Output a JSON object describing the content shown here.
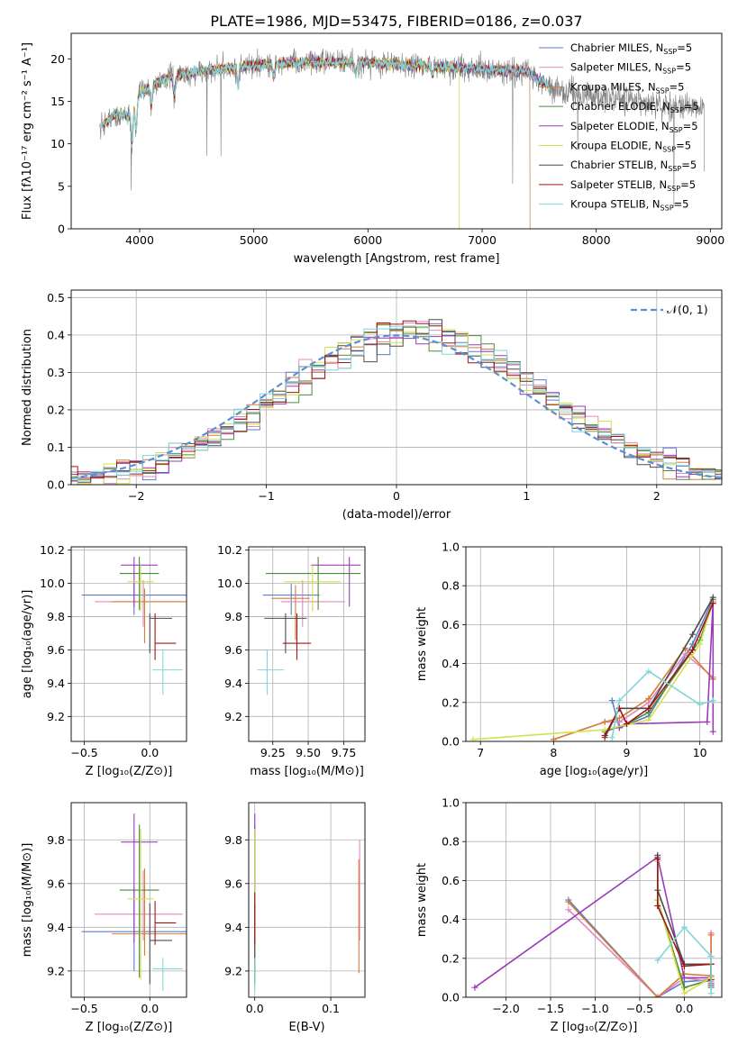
{
  "figure": {
    "title": "PLATE=1986, MJD=53475, FIBERID=0186, z=0.037",
    "colors": [
      "#5b7ec6",
      "#e08ac0",
      "#d67d3a",
      "#4f8a3a",
      "#9b3bb8",
      "#d2e24a",
      "#4d4d4d",
      "#a01616",
      "#7fd6da"
    ]
  },
  "chart_data": [
    {
      "id": "spectrum",
      "type": "line",
      "xlabel": "wavelength [Angstrom, rest frame]",
      "ylabel": "Flux [fλ10⁻¹⁷ erg cm⁻² s⁻¹ A⁻¹]",
      "xlim": [
        3400,
        9100
      ],
      "ylim": [
        0,
        23
      ],
      "xticks": [
        4000,
        5000,
        6000,
        7000,
        8000,
        9000
      ],
      "yticks": [
        0,
        5,
        10,
        15,
        20
      ],
      "grid": false,
      "legend": "top-right",
      "continuum": {
        "x": [
          3650,
          3800,
          3900,
          4000,
          4200,
          4500,
          5000,
          5500,
          6000,
          6500,
          7000,
          7400,
          7600,
          7800,
          8000,
          8300,
          8600,
          8900
        ],
        "y": [
          12.0,
          13.5,
          13.2,
          16.0,
          17.5,
          18.5,
          19.2,
          19.6,
          19.6,
          19.2,
          18.8,
          18.5,
          16.5,
          16.0,
          15.6,
          15.0,
          14.6,
          14.1
        ]
      },
      "series": [
        {
          "name": "Chabrier MILES, N",
          "sub": "SSP",
          "suffix": "=5"
        },
        {
          "name": "Salpeter MILES, N",
          "sub": "SSP",
          "suffix": "=5"
        },
        {
          "name": "Kroupa MILES, N",
          "sub": "SSP",
          "suffix": "=5"
        },
        {
          "name": "Chabrier ELODIE, N",
          "sub": "SSP",
          "suffix": "=5"
        },
        {
          "name": "Salpeter ELODIE, N",
          "sub": "SSP",
          "suffix": "=5"
        },
        {
          "name": "Kroupa ELODIE, N",
          "sub": "SSP",
          "suffix": "=5"
        },
        {
          "name": "Chabrier STELIB, N",
          "sub": "SSP",
          "suffix": "=5"
        },
        {
          "name": "Salpeter STELIB, N",
          "sub": "SSP",
          "suffix": "=5"
        },
        {
          "name": "Kroupa STELIB, N",
          "sub": "SSP",
          "suffix": "=5"
        }
      ]
    },
    {
      "id": "residuals",
      "type": "line",
      "xlabel": "(data-model)/error",
      "ylabel": "Normed distribution",
      "xlim": [
        -2.5,
        2.5
      ],
      "ylim": [
        0,
        0.52
      ],
      "xticks": [
        -2,
        -1,
        0,
        1,
        2
      ],
      "xtick_labels": [
        "−2",
        "−1",
        "0",
        "1",
        "2"
      ],
      "yticks": [
        0.0,
        0.1,
        0.2,
        0.3,
        0.4,
        0.5
      ],
      "ytick_labels": [
        "0.0",
        "0.1",
        "0.2",
        "0.3",
        "0.4",
        "0.5"
      ],
      "grid": true,
      "legend": "top-right",
      "gaussian_label": "𝒩(0, 1)",
      "bin_width": 0.1
    },
    {
      "id": "age-vs-Z",
      "type": "scatter",
      "xlabel": "Z [log₁₀(Z/Z⊙)]",
      "ylabel": "age  [log₁₀(age/yr)]",
      "xlim": [
        -0.6,
        0.28
      ],
      "ylim": [
        9.05,
        10.22
      ],
      "xticks": [
        -0.5,
        0.0
      ],
      "xtick_labels": [
        "−0.5",
        "0.0"
      ],
      "yticks": [
        9.2,
        9.4,
        9.6,
        9.8,
        10.0,
        10.2
      ],
      "ytick_labels": [
        "9.2",
        "9.4",
        "9.6",
        "9.8",
        "10.0",
        "10.2"
      ],
      "grid": true,
      "points": [
        {
          "x": -0.12,
          "y": 9.93,
          "xerr": [
            0.4,
            0.4
          ],
          "yerr": [
            0.12,
            0.07
          ]
        },
        {
          "x": -0.05,
          "y": 9.89,
          "xerr": [
            0.37,
            0.3
          ],
          "yerr": [
            0.15,
            0.13
          ]
        },
        {
          "x": -0.04,
          "y": 9.89,
          "xerr": [
            0.25,
            0.35
          ],
          "yerr": [
            0.25,
            0.08
          ]
        },
        {
          "x": -0.08,
          "y": 10.06,
          "xerr": [
            0.15,
            0.15
          ],
          "yerr": [
            0.22,
            0.1
          ]
        },
        {
          "x": -0.12,
          "y": 10.11,
          "xerr": [
            0.1,
            0.18
          ],
          "yerr": [
            0.25,
            0.05
          ]
        },
        {
          "x": -0.07,
          "y": 10.01,
          "xerr": [
            0.1,
            0.1
          ],
          "yerr": [
            0.18,
            0.1
          ]
        },
        {
          "x": 0.0,
          "y": 9.79,
          "xerr": [
            0.0,
            0.17
          ],
          "yerr": [
            0.21,
            0.03
          ]
        },
        {
          "x": 0.04,
          "y": 9.64,
          "xerr": [
            0.0,
            0.16
          ],
          "yerr": [
            0.1,
            0.18
          ]
        },
        {
          "x": 0.1,
          "y": 9.48,
          "xerr": [
            0.08,
            0.15
          ],
          "yerr": [
            0.15,
            0.12
          ]
        }
      ]
    },
    {
      "id": "age-vs-mass",
      "type": "scatter",
      "xlabel": "mass [log₁₀(M/M⊙)]",
      "ylabel": "",
      "xlim": [
        9.08,
        9.9
      ],
      "ylim": [
        9.05,
        10.22
      ],
      "xticks": [
        9.25,
        9.5,
        9.75
      ],
      "xtick_labels": [
        "9.25",
        "9.50",
        "9.75"
      ],
      "yticks": [
        9.2,
        9.4,
        9.6,
        9.8,
        10.0,
        10.2
      ],
      "ytick_labels": [
        "9.2",
        "9.4",
        "9.6",
        "9.8",
        "10.0",
        "10.2"
      ],
      "grid": true,
      "points": [
        {
          "x": 9.38,
          "y": 9.93,
          "xerr": [
            0.2,
            0.2
          ],
          "yerr": [
            0.12,
            0.07
          ]
        },
        {
          "x": 9.46,
          "y": 9.89,
          "xerr": [
            0.15,
            0.3
          ],
          "yerr": [
            0.15,
            0.13
          ]
        },
        {
          "x": 9.41,
          "y": 9.91,
          "xerr": [
            0.17,
            0.1
          ],
          "yerr": [
            0.25,
            0.08
          ]
        },
        {
          "x": 9.57,
          "y": 10.06,
          "xerr": [
            0.37,
            0.3
          ],
          "yerr": [
            0.22,
            0.1
          ]
        },
        {
          "x": 9.79,
          "y": 10.11,
          "xerr": [
            0.27,
            0.08
          ],
          "yerr": [
            0.25,
            0.05
          ]
        },
        {
          "x": 9.53,
          "y": 10.01,
          "xerr": [
            0.2,
            0.2
          ],
          "yerr": [
            0.18,
            0.1
          ]
        },
        {
          "x": 9.34,
          "y": 9.79,
          "xerr": [
            0.15,
            0.15
          ],
          "yerr": [
            0.21,
            0.03
          ]
        },
        {
          "x": 9.42,
          "y": 9.64,
          "xerr": [
            0.1,
            0.1
          ],
          "yerr": [
            0.1,
            0.18
          ]
        },
        {
          "x": 9.21,
          "y": 9.48,
          "xerr": [
            0.07,
            0.12
          ],
          "yerr": [
            0.15,
            0.12
          ]
        }
      ]
    },
    {
      "id": "weight-vs-age",
      "type": "line",
      "xlabel": "age  [log₁₀(age/yr)]",
      "ylabel": "mass weight",
      "xlim": [
        6.8,
        10.3
      ],
      "ylim": [
        0,
        1.0
      ],
      "xticks": [
        7,
        8,
        9,
        10
      ],
      "xtick_labels": [
        "7",
        "8",
        "9",
        "10"
      ],
      "yticks": [
        0,
        0.2,
        0.4,
        0.6,
        0.8,
        1.0
      ],
      "ytick_labels": [
        "0.0",
        "0.2",
        "0.4",
        "0.6",
        "0.8",
        "1.0"
      ],
      "grid": true,
      "lines": [
        {
          "x": [
            8.8,
            8.9,
            9.3,
            9.9,
            10.18
          ],
          "y": [
            0.21,
            0.07,
            0.13,
            0.5,
            0.73
          ]
        },
        {
          "x": [
            8.0,
            8.7,
            8.9,
            9.3,
            9.8,
            10.18
          ],
          "y": [
            0.01,
            0.1,
            0.1,
            0.2,
            0.45,
            0.33
          ]
        },
        {
          "x": [
            8.0,
            8.7,
            8.9,
            9.3,
            9.8,
            10.18
          ],
          "y": [
            0.01,
            0.1,
            0.12,
            0.22,
            0.48,
            0.32
          ]
        },
        {
          "x": [
            8.7,
            9.0,
            9.3,
            10.0,
            10.18
          ],
          "y": [
            0.05,
            0.09,
            0.15,
            0.52,
            0.72
          ]
        },
        {
          "x": [
            8.9,
            9.0,
            10.1,
            10.18,
            10.18
          ],
          "y": [
            0.07,
            0.09,
            0.1,
            0.72,
            0.05
          ]
        },
        {
          "x": [
            6.9,
            8.7,
            9.3,
            10.0,
            10.18
          ],
          "y": [
            0.01,
            0.06,
            0.11,
            0.5,
            0.72
          ]
        },
        {
          "x": [
            8.7,
            8.9,
            9.3,
            9.9,
            10.18
          ],
          "y": [
            0.02,
            0.17,
            0.17,
            0.55,
            0.74
          ]
        },
        {
          "x": [
            8.7,
            8.9,
            9.0,
            9.3,
            9.9,
            10.18
          ],
          "y": [
            0.03,
            0.17,
            0.09,
            0.17,
            0.47,
            0.71
          ]
        },
        {
          "x": [
            8.8,
            8.9,
            9.3,
            10.0,
            10.18
          ],
          "y": [
            0.02,
            0.21,
            0.36,
            0.19,
            0.21
          ]
        }
      ]
    },
    {
      "id": "mass-vs-Z",
      "type": "scatter",
      "xlabel": "Z [log₁₀(Z/Z⊙)]",
      "ylabel": "mass [log₁₀(M/M⊙)]",
      "xlim": [
        -0.6,
        0.28
      ],
      "ylim": [
        9.08,
        9.97
      ],
      "xticks": [
        -0.5,
        0.0
      ],
      "xtick_labels": [
        "−0.5",
        "0.0"
      ],
      "yticks": [
        9.2,
        9.4,
        9.6,
        9.8
      ],
      "ytick_labels": [
        "9.2",
        "9.4",
        "9.6",
        "9.8"
      ],
      "grid": true,
      "points": [
        {
          "x": -0.12,
          "y": 9.38,
          "xerr": [
            0.4,
            0.4
          ],
          "yerr": [
            0.18,
            0.2
          ]
        },
        {
          "x": -0.05,
          "y": 9.46,
          "xerr": [
            0.37,
            0.3
          ],
          "yerr": [
            0.12,
            0.2
          ]
        },
        {
          "x": -0.04,
          "y": 9.37,
          "xerr": [
            0.25,
            0.35
          ],
          "yerr": [
            0.1,
            0.3
          ]
        },
        {
          "x": -0.08,
          "y": 9.57,
          "xerr": [
            0.15,
            0.15
          ],
          "yerr": [
            0.4,
            0.3
          ]
        },
        {
          "x": -0.12,
          "y": 9.79,
          "xerr": [
            0.1,
            0.18
          ],
          "yerr": [
            0.46,
            0.13
          ]
        },
        {
          "x": -0.07,
          "y": 9.53,
          "xerr": [
            0.1,
            0.1
          ],
          "yerr": [
            0.37,
            0.32
          ]
        },
        {
          "x": 0.0,
          "y": 9.34,
          "xerr": [
            0.0,
            0.17
          ],
          "yerr": [
            0.2,
            0.17
          ]
        },
        {
          "x": 0.04,
          "y": 9.42,
          "xerr": [
            0.0,
            0.16
          ],
          "yerr": [
            0.1,
            0.1
          ]
        },
        {
          "x": 0.1,
          "y": 9.21,
          "xerr": [
            0.08,
            0.15
          ],
          "yerr": [
            0.1,
            0.05
          ]
        }
      ]
    },
    {
      "id": "mass-vs-ebv",
      "type": "scatter",
      "xlabel": "E(B-V)",
      "ylabel": "",
      "xlim": [
        -0.008,
        0.145
      ],
      "ylim": [
        9.08,
        9.97
      ],
      "xticks": [
        0.0,
        0.1
      ],
      "xtick_labels": [
        "0.0",
        "0.1"
      ],
      "yticks": [
        9.2,
        9.4,
        9.6,
        9.8
      ],
      "ytick_labels": [
        "9.2",
        "9.4",
        "9.6",
        "9.8"
      ],
      "grid": true,
      "points": [
        {
          "x": 0.0,
          "y": 9.38,
          "yerr": [
            0.18,
            0.2
          ]
        },
        {
          "x": 0.138,
          "y": 9.46,
          "yerr": [
            0.12,
            0.34
          ]
        },
        {
          "x": 0.137,
          "y": 9.37,
          "yerr": [
            0.18,
            0.34
          ]
        },
        {
          "x": 0.0,
          "y": 9.57,
          "yerr": [
            0.4,
            0.3
          ]
        },
        {
          "x": 0.0,
          "y": 9.79,
          "yerr": [
            0.46,
            0.13
          ]
        },
        {
          "x": 0.0,
          "y": 9.53,
          "yerr": [
            0.37,
            0.32
          ]
        },
        {
          "x": 0.0,
          "y": 9.34,
          "yerr": [
            0.2,
            0.17
          ]
        },
        {
          "x": 0.0,
          "y": 9.42,
          "yerr": [
            0.1,
            0.14
          ]
        },
        {
          "x": 0.0,
          "y": 9.21,
          "yerr": [
            0.1,
            0.05
          ]
        }
      ]
    },
    {
      "id": "weight-vs-Z",
      "type": "line",
      "xlabel": "Z [log₁₀(Z/Z⊙)]",
      "ylabel": "mass weight",
      "xlim": [
        -2.45,
        0.42
      ],
      "ylim": [
        0,
        1.0
      ],
      "xticks": [
        -2.0,
        -1.5,
        -1.0,
        -0.5,
        0.0
      ],
      "xtick_labels": [
        "−2.0",
        "−1.5",
        "−1.0",
        "−0.5",
        "0.0"
      ],
      "yticks": [
        0,
        0.2,
        0.4,
        0.6,
        0.8,
        1.0
      ],
      "ytick_labels": [
        "0.0",
        "0.2",
        "0.4",
        "0.6",
        "0.8",
        "1.0"
      ],
      "grid": true,
      "lines": [
        {
          "x": [
            -1.3,
            -0.3,
            0.0,
            0.3,
            0.3
          ],
          "y": [
            0.5,
            0.0,
            0.08,
            0.09,
            0.21
          ]
        },
        {
          "x": [
            -1.3,
            -0.3,
            0.0,
            0.3,
            0.3
          ],
          "y": [
            0.45,
            0.0,
            0.1,
            0.08,
            0.33
          ]
        },
        {
          "x": [
            -1.3,
            -0.3,
            0.0,
            0.3,
            0.3
          ],
          "y": [
            0.49,
            0.0,
            0.12,
            0.11,
            0.32
          ]
        },
        {
          "x": [
            -0.3,
            -0.3,
            0.0,
            0.3,
            0.3
          ],
          "y": [
            0.7,
            0.5,
            0.05,
            0.09,
            0.05
          ]
        },
        {
          "x": [
            -2.35,
            -0.3,
            0.0,
            0.3,
            0.3
          ],
          "y": [
            0.05,
            0.72,
            0.1,
            0.1,
            0.07
          ]
        },
        {
          "x": [
            -0.3,
            -0.3,
            0.0,
            0.3,
            0.3
          ],
          "y": [
            0.7,
            0.5,
            0.02,
            0.1,
            0.06
          ]
        },
        {
          "x": [
            -0.3,
            -0.3,
            0.0,
            0.3,
            0.3
          ],
          "y": [
            0.73,
            0.55,
            0.17,
            0.17,
            0.06
          ]
        },
        {
          "x": [
            -0.3,
            -0.3,
            0.0,
            0.3,
            0.3
          ],
          "y": [
            0.71,
            0.47,
            0.16,
            0.17,
            0.09
          ]
        },
        {
          "x": [
            -0.3,
            0.0,
            0.3,
            0.3
          ],
          "y": [
            0.19,
            0.36,
            0.21,
            0.02
          ]
        }
      ]
    }
  ]
}
